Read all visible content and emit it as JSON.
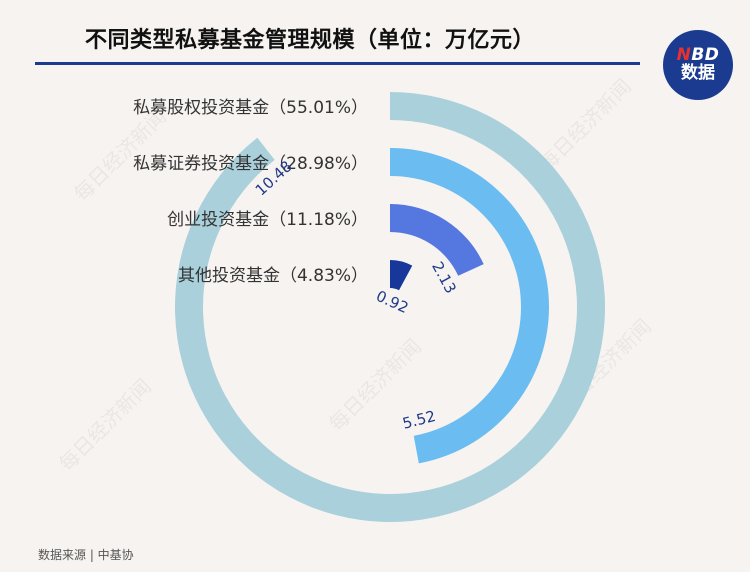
{
  "header": {
    "title": "不同类型私募基金管理规模（单位：万亿元）"
  },
  "logo": {
    "top_text": "NBD",
    "bottom_text": "数据",
    "accent_letter": "N"
  },
  "watermark": {
    "text": "每日经济新闻"
  },
  "footer": {
    "source": "数据来源 | 中基协"
  },
  "colors": {
    "background": "#f6f3f0",
    "title_rule": "#1a3b8f",
    "value_label": "#1f3a8a"
  },
  "chart_data": {
    "type": "radial_bar",
    "title": "不同类型私募基金管理规模（单位：万亿元）",
    "unit": "万亿元",
    "max": 11.72,
    "series": [
      {
        "category": "私募股权投资基金（55.01%）",
        "value": 10.48,
        "value_label": "10.48",
        "color": "#a9d0db"
      },
      {
        "category": "私募证券投资基金（28.98%）",
        "value": 5.52,
        "value_label": "5.52",
        "color": "#6bbcf0"
      },
      {
        "category": "创业投资基金（11.18%）",
        "value": 2.13,
        "value_label": "2.13",
        "color": "#5577e0"
      },
      {
        "category": "其他投资基金（4.83%）",
        "value": 0.92,
        "value_label": "0.92",
        "color": "#17389a"
      }
    ]
  }
}
